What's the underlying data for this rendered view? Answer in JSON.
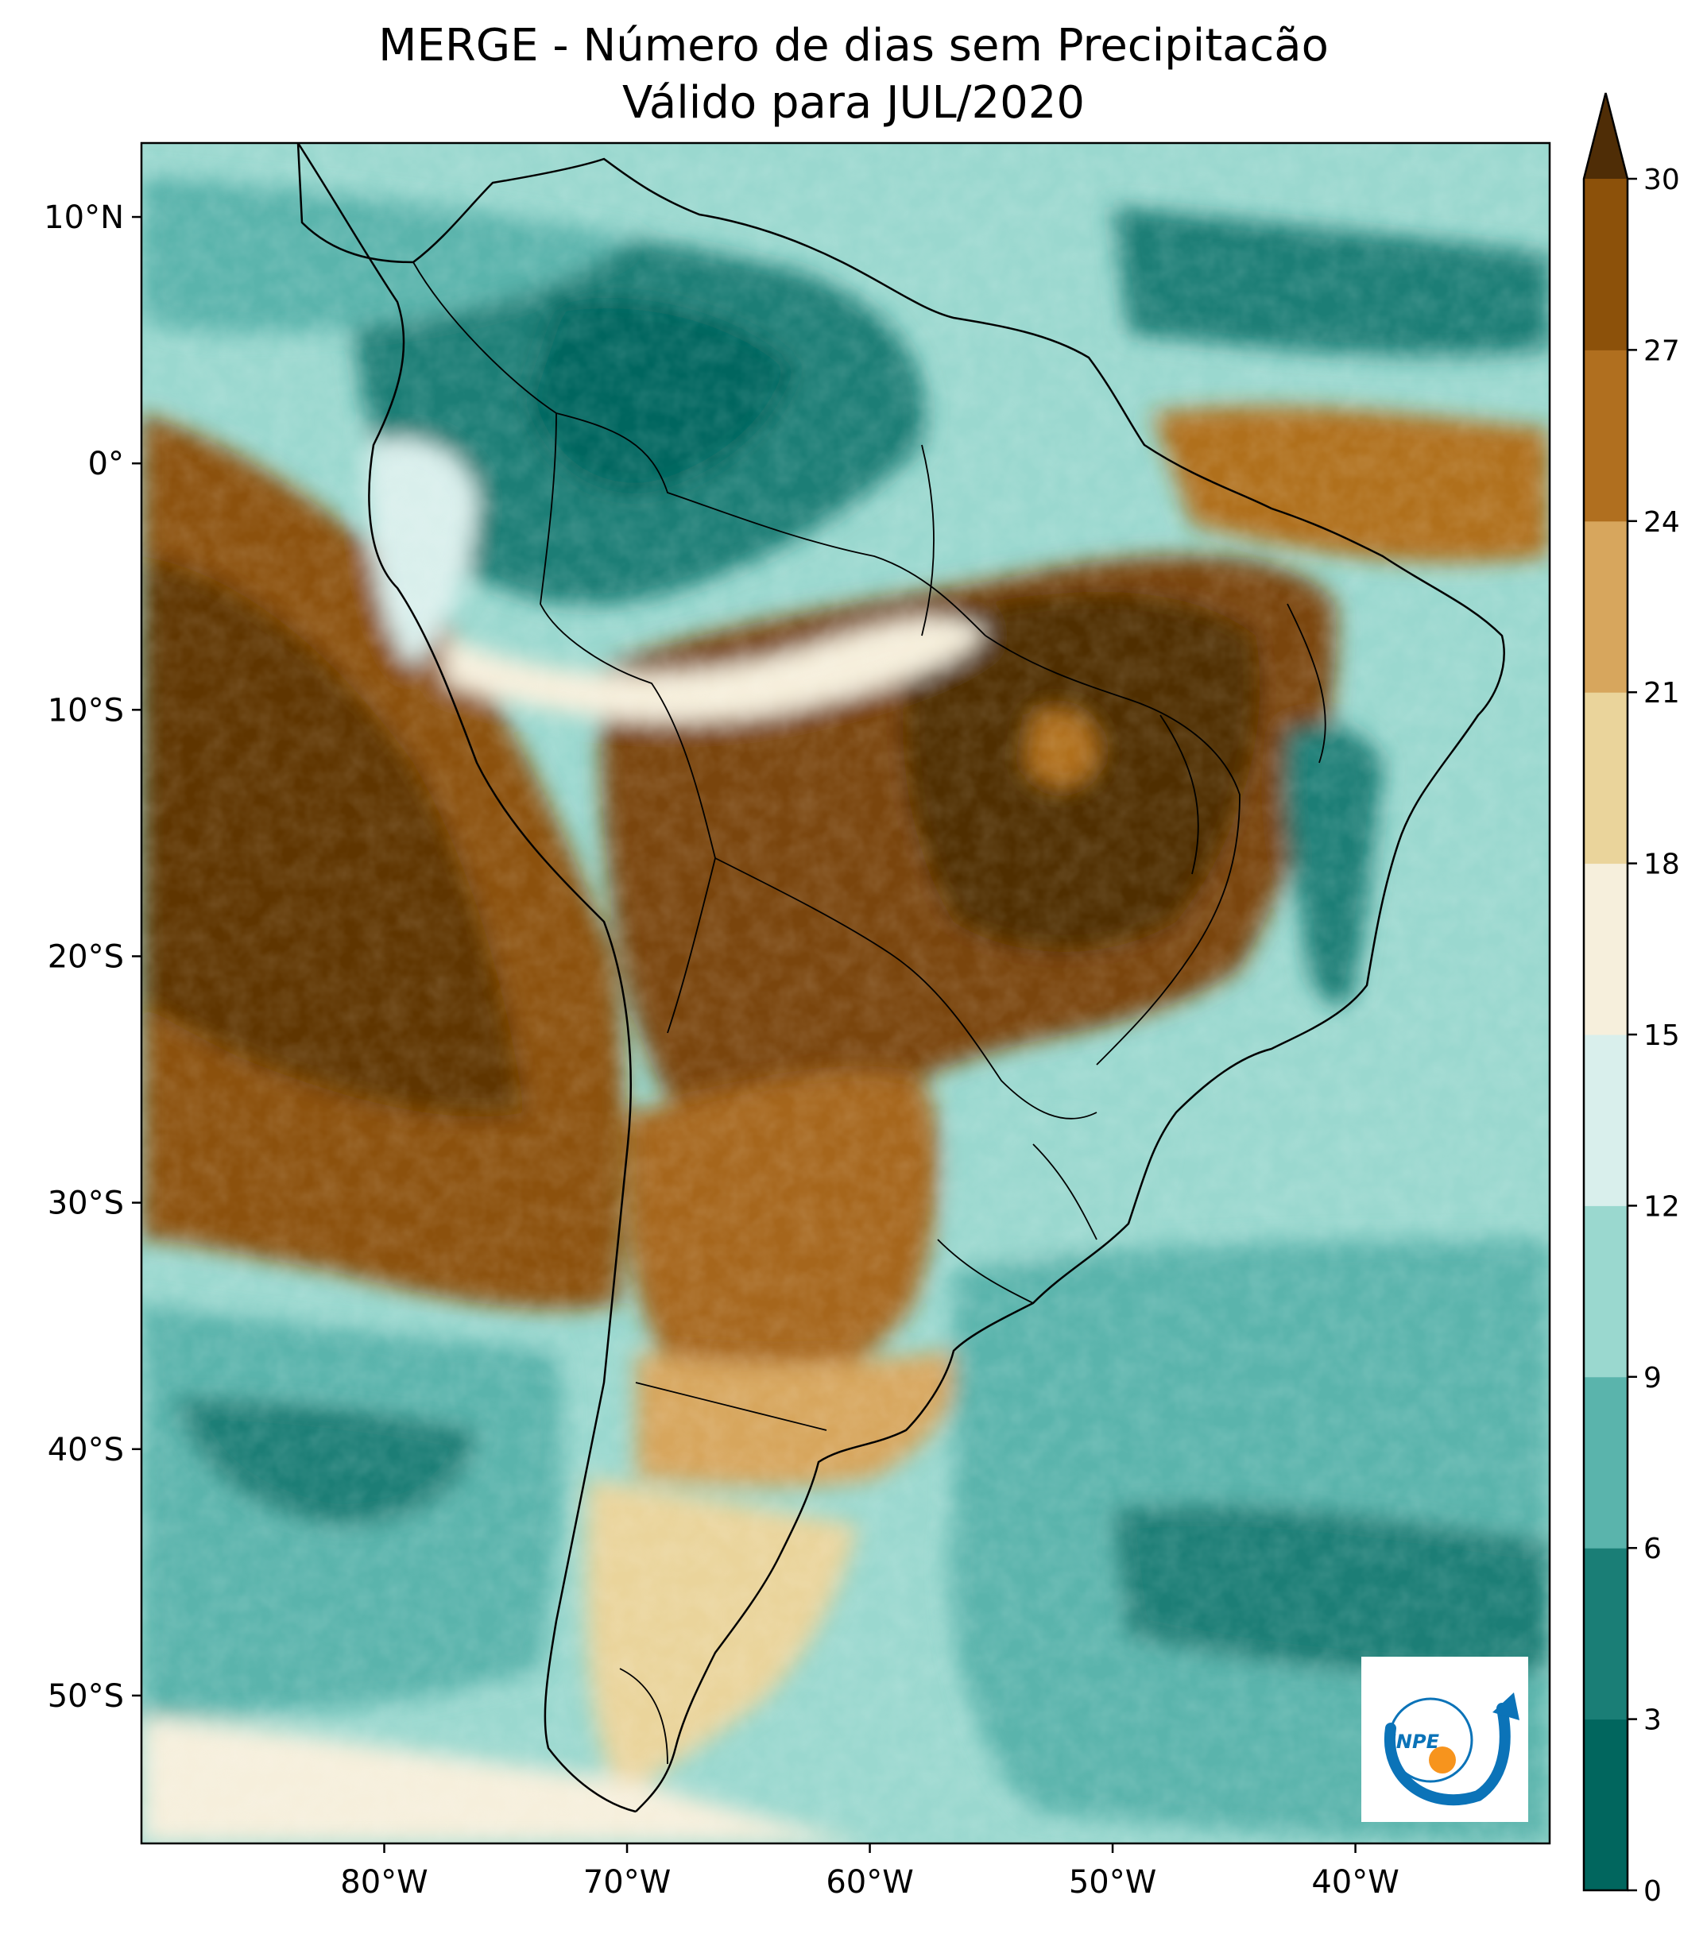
{
  "title": {
    "line1": "MERGE - Número de dias sem Precipitacão",
    "line2": "Válido para JUL/2020"
  },
  "axes": {
    "lat_ticks": [
      "10°N",
      "0°",
      "10°S",
      "20°S",
      "30°S",
      "40°S",
      "50°S"
    ],
    "lon_ticks": [
      "80°W",
      "70°W",
      "60°W",
      "50°W",
      "40°W"
    ],
    "lat_range": [
      -56,
      13
    ],
    "lon_range": [
      -90,
      -32
    ]
  },
  "colorbar": {
    "ticks": [
      "0",
      "3",
      "6",
      "9",
      "12",
      "15",
      "18",
      "21",
      "24",
      "27",
      "30"
    ],
    "colors": [
      "#01665e",
      "#1a7e76",
      "#5ab4ac",
      "#9ad8cf",
      "#d9efec",
      "#f6efdc",
      "#ead49b",
      "#d7a65d",
      "#b06f1f",
      "#8c510a",
      "#4f2d06"
    ],
    "extend": "max"
  },
  "logo": {
    "text": "INPE",
    "colors": {
      "arc": "#0b73b8",
      "dot": "#f7941d"
    }
  },
  "colors": {
    "dry": "#8c510a",
    "wet": "#01665e"
  }
}
